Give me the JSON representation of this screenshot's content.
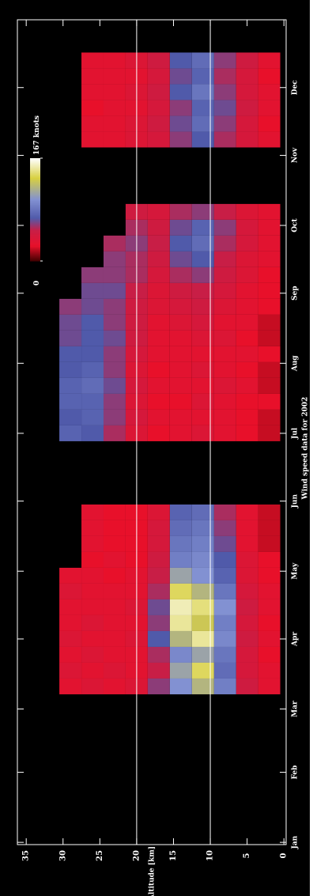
{
  "chart_data": {
    "type": "heatmap",
    "title": "Wind speed data for 2002",
    "y_label": "Altitude [km]",
    "x": [
      70,
      77,
      84,
      91,
      98,
      105,
      112,
      119,
      126,
      133,
      140,
      147,
      182,
      189,
      196,
      203,
      210,
      217,
      224,
      231,
      238,
      245,
      252,
      259,
      266,
      273,
      280,
      312,
      319,
      326,
      333,
      340,
      347
    ],
    "y": [
      2,
      5,
      8,
      11,
      14,
      17,
      20,
      23,
      26,
      29
    ],
    "values": [
      [
        30,
        45,
        90,
        120,
        100,
        60,
        35,
        30,
        35,
        30
      ],
      [
        30,
        40,
        80,
        140,
        110,
        50,
        30,
        35,
        30,
        35
      ],
      [
        25,
        40,
        85,
        110,
        95,
        55,
        30,
        30,
        35,
        30
      ],
      [
        30,
        45,
        95,
        150,
        120,
        70,
        35,
        30,
        30,
        35
      ],
      [
        25,
        40,
        90,
        130,
        150,
        60,
        30,
        30,
        35,
        30
      ],
      [
        30,
        45,
        100,
        145,
        155,
        65,
        35,
        30,
        30,
        30
      ],
      [
        30,
        40,
        85,
        120,
        140,
        55,
        30,
        30,
        30,
        35
      ],
      [
        25,
        35,
        75,
        100,
        110,
        50,
        30,
        25,
        30,
        30
      ],
      [
        25,
        35,
        70,
        95,
        90,
        45,
        25,
        30,
        25,
        null
      ],
      [
        20,
        30,
        65,
        90,
        85,
        40,
        25,
        25,
        30,
        null
      ],
      [
        20,
        30,
        60,
        85,
        80,
        40,
        25,
        25,
        30,
        null
      ],
      [
        20,
        30,
        55,
        80,
        75,
        35,
        25,
        25,
        30,
        null
      ],
      [
        20,
        25,
        30,
        35,
        30,
        25,
        35,
        55,
        70,
        75
      ],
      [
        20,
        25,
        30,
        30,
        30,
        30,
        40,
        60,
        75,
        70
      ],
      [
        25,
        25,
        30,
        35,
        25,
        25,
        35,
        60,
        75,
        75
      ],
      [
        20,
        30,
        35,
        30,
        30,
        30,
        40,
        65,
        80,
        75
      ],
      [
        20,
        25,
        30,
        35,
        30,
        25,
        35,
        60,
        75,
        70
      ],
      [
        25,
        30,
        30,
        30,
        30,
        30,
        40,
        60,
        70,
        70
      ],
      [
        20,
        25,
        35,
        35,
        30,
        30,
        45,
        65,
        70,
        65
      ],
      [
        20,
        30,
        30,
        40,
        35,
        30,
        45,
        60,
        70,
        65
      ],
      [
        25,
        30,
        35,
        45,
        40,
        35,
        45,
        60,
        65,
        60
      ],
      [
        25,
        30,
        40,
        50,
        45,
        35,
        50,
        65,
        65,
        null
      ],
      [
        25,
        35,
        45,
        60,
        55,
        40,
        55,
        60,
        60,
        null
      ],
      [
        30,
        35,
        50,
        70,
        65,
        45,
        55,
        60,
        null,
        null
      ],
      [
        30,
        40,
        55,
        80,
        70,
        50,
        60,
        55,
        null,
        null
      ],
      [
        30,
        40,
        60,
        75,
        65,
        45,
        55,
        null,
        null,
        null
      ],
      [
        30,
        35,
        50,
        60,
        55,
        40,
        45,
        null,
        null,
        null
      ],
      [
        30,
        40,
        55,
        70,
        60,
        40,
        35,
        30,
        30,
        null
      ],
      [
        25,
        40,
        60,
        80,
        65,
        45,
        35,
        30,
        30,
        null
      ],
      [
        30,
        45,
        65,
        75,
        60,
        40,
        30,
        30,
        25,
        null
      ],
      [
        30,
        40,
        60,
        85,
        70,
        45,
        35,
        30,
        30,
        null
      ],
      [
        25,
        40,
        55,
        75,
        65,
        40,
        30,
        30,
        30,
        null
      ],
      [
        30,
        45,
        60,
        80,
        70,
        45,
        35,
        30,
        30,
        null
      ]
    ],
    "xlim": [
      0,
      365
    ],
    "xticks": [
      {
        "value": 1,
        "label": "Jan"
      },
      {
        "value": 32,
        "label": "Feb"
      },
      {
        "value": 60,
        "label": "Mar"
      },
      {
        "value": 91,
        "label": "Apr"
      },
      {
        "value": 121,
        "label": "May"
      },
      {
        "value": 152,
        "label": "Jun"
      },
      {
        "value": 182,
        "label": "Jul"
      },
      {
        "value": 213,
        "label": "Aug"
      },
      {
        "value": 244,
        "label": "Sep"
      },
      {
        "value": 274,
        "label": "Oct"
      },
      {
        "value": 305,
        "label": "Nov"
      },
      {
        "value": 335,
        "label": "Dec"
      }
    ],
    "ylim": [
      -0.3,
      36.2
    ],
    "yticks": [
      0,
      5,
      10,
      15,
      20,
      25,
      30,
      35
    ],
    "grid_lines": [
      10,
      20
    ],
    "colorbar": {
      "range": [
        0,
        167
      ],
      "ticks": [
        0,
        {
          "value": 167,
          "label": "167 knots"
        }
      ]
    }
  }
}
